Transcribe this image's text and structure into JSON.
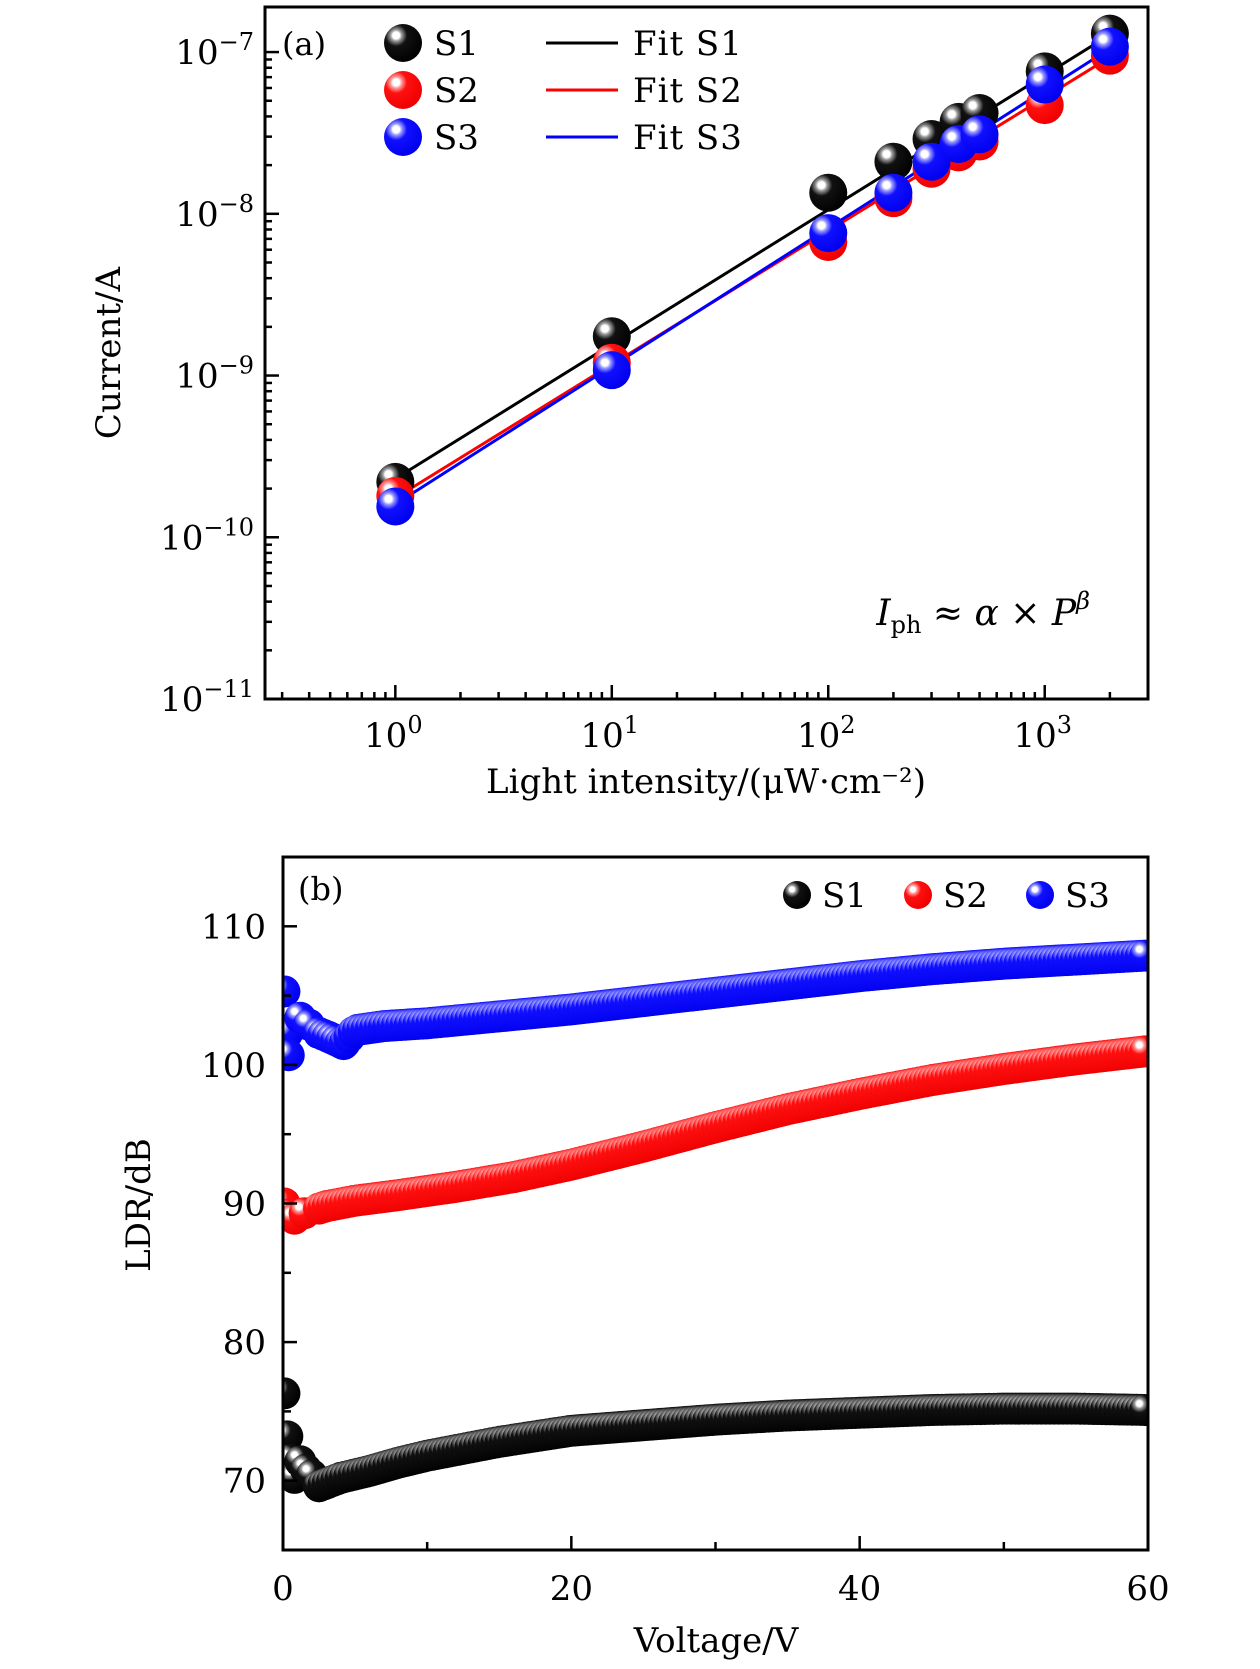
{
  "chart_data": [
    {
      "panel": "(a)",
      "type": "scatter",
      "xscale": "log",
      "yscale": "log",
      "xlabel": "Light intensity/(μW·cm⁻²)",
      "ylabel": "Current/A",
      "xlim": [
        0.25,
        3000
      ],
      "ylim": [
        1e-11,
        1.9e-07
      ],
      "xticks": [
        1,
        10,
        100,
        1000
      ],
      "xtick_labels": [
        {
          "base": "10",
          "exp": "0"
        },
        {
          "base": "10",
          "exp": "1"
        },
        {
          "base": "10",
          "exp": "2"
        },
        {
          "base": "10",
          "exp": "3"
        }
      ],
      "yticks": [
        1e-11,
        1e-10,
        1e-09,
        1e-08,
        1e-07
      ],
      "ytick_labels": [
        {
          "base": "10",
          "exp": "−11"
        },
        {
          "base": "10",
          "exp": "−10"
        },
        {
          "base": "10",
          "exp": "−9"
        },
        {
          "base": "10",
          "exp": "−8"
        },
        {
          "base": "10",
          "exp": "−7"
        }
      ],
      "x": [
        1,
        10,
        100,
        200,
        300,
        400,
        500,
        1000,
        2000
      ],
      "series": [
        {
          "name": "S1",
          "color": "#000000",
          "values": [
            2.2e-10,
            1.75e-09,
            1.35e-08,
            2.1e-08,
            2.9e-08,
            3.7e-08,
            4.2e-08,
            7.6e-08,
            1.3e-07
          ]
        },
        {
          "name": "S2",
          "color": "#ff0000",
          "values": [
            1.8e-10,
            1.2e-09,
            6.7e-09,
            1.25e-08,
            1.9e-08,
            2.4e-08,
            2.8e-08,
            4.7e-08,
            9.5e-08
          ]
        },
        {
          "name": "S3",
          "color": "#0000ff",
          "values": [
            1.55e-10,
            1.08e-09,
            7.6e-09,
            1.35e-08,
            2.1e-08,
            2.7e-08,
            3.1e-08,
            6.3e-08,
            1.08e-07
          ]
        }
      ],
      "fits": [
        {
          "name": "Fit S1",
          "color": "#000000",
          "x_range": [
            1,
            2000
          ],
          "y_range": [
            2.3e-10,
            1.28e-07
          ]
        },
        {
          "name": "Fit S2",
          "color": "#ff0000",
          "x_range": [
            1,
            2000
          ],
          "y_range": [
            1.75e-10,
            9.3e-08
          ]
        },
        {
          "name": "Fit S3",
          "color": "#0000ff",
          "x_range": [
            1,
            2000
          ],
          "y_range": [
            1.6e-10,
            1.05e-07
          ]
        }
      ],
      "legend": {
        "placement": "top-left",
        "markers": [
          "S1",
          "S2",
          "S3"
        ],
        "lines": [
          "Fit S1",
          "Fit S2",
          "Fit S3"
        ]
      },
      "annotation": {
        "I": "I",
        "sub": "ph",
        "rest": " ≈ α × P",
        "sup": "β",
        "placement": "bottom-right"
      }
    },
    {
      "panel": "(b)",
      "type": "scatter",
      "xlabel": "Voltage/V",
      "ylabel": "LDR/dB",
      "xlim": [
        0,
        60
      ],
      "ylim": [
        65,
        115
      ],
      "xticks": [
        0,
        20,
        40,
        60
      ],
      "xtick_labels": [
        "0",
        "20",
        "40",
        "60"
      ],
      "yticks": [
        70,
        80,
        90,
        100,
        110
      ],
      "ytick_labels": [
        "70",
        "80",
        "90",
        "100",
        "110"
      ],
      "series": [
        {
          "name": "S1",
          "color": "#000000",
          "points": [
            [
              0.1,
              76.3
            ],
            [
              0.3,
              73.2
            ],
            [
              0.5,
              71.5
            ],
            [
              0.8,
              70.2
            ],
            [
              1.2,
              71.4
            ],
            [
              1.6,
              70.8
            ],
            [
              2,
              70.4
            ],
            [
              2.5,
              69.6
            ],
            [
              3,
              69.8
            ],
            [
              4,
              70.2
            ],
            [
              6,
              70.7
            ],
            [
              8,
              71.3
            ],
            [
              10,
              71.8
            ],
            [
              15,
              72.8
            ],
            [
              20,
              73.6
            ],
            [
              25,
              74.0
            ],
            [
              30,
              74.4
            ],
            [
              35,
              74.7
            ],
            [
              40,
              74.9
            ],
            [
              45,
              75.1
            ],
            [
              50,
              75.2
            ],
            [
              55,
              75.2
            ],
            [
              60,
              75.1
            ]
          ]
        },
        {
          "name": "S2",
          "color": "#ff0000",
          "points": [
            [
              0.1,
              90.0
            ],
            [
              0.4,
              89.2
            ],
            [
              0.8,
              88.9
            ],
            [
              1.5,
              89.3
            ],
            [
              3,
              89.8
            ],
            [
              5,
              90.2
            ],
            [
              8,
              90.6
            ],
            [
              12,
              91.2
            ],
            [
              16,
              91.9
            ],
            [
              20,
              92.8
            ],
            [
              25,
              94.1
            ],
            [
              30,
              95.5
            ],
            [
              35,
              96.8
            ],
            [
              40,
              97.9
            ],
            [
              45,
              98.9
            ],
            [
              50,
              99.7
            ],
            [
              55,
              100.4
            ],
            [
              60,
              101.0
            ]
          ]
        },
        {
          "name": "S3",
          "color": "#0000ff",
          "points": [
            [
              0.1,
              105.3
            ],
            [
              0.3,
              102.3
            ],
            [
              0.4,
              100.7
            ],
            [
              1.2,
              103.4
            ],
            [
              1.8,
              102.9
            ],
            [
              2.5,
              102.3
            ],
            [
              3.2,
              102.0
            ],
            [
              4.2,
              101.5
            ],
            [
              5,
              102.5
            ],
            [
              7,
              102.8
            ],
            [
              10,
              103.0
            ],
            [
              15,
              103.5
            ],
            [
              20,
              104.0
            ],
            [
              25,
              104.6
            ],
            [
              30,
              105.2
            ],
            [
              35,
              105.8
            ],
            [
              40,
              106.4
            ],
            [
              45,
              106.9
            ],
            [
              50,
              107.3
            ],
            [
              55,
              107.6
            ],
            [
              60,
              107.9
            ]
          ]
        }
      ],
      "legend": {
        "placement": "top-right",
        "entries": [
          "S1",
          "S2",
          "S3"
        ]
      }
    }
  ]
}
